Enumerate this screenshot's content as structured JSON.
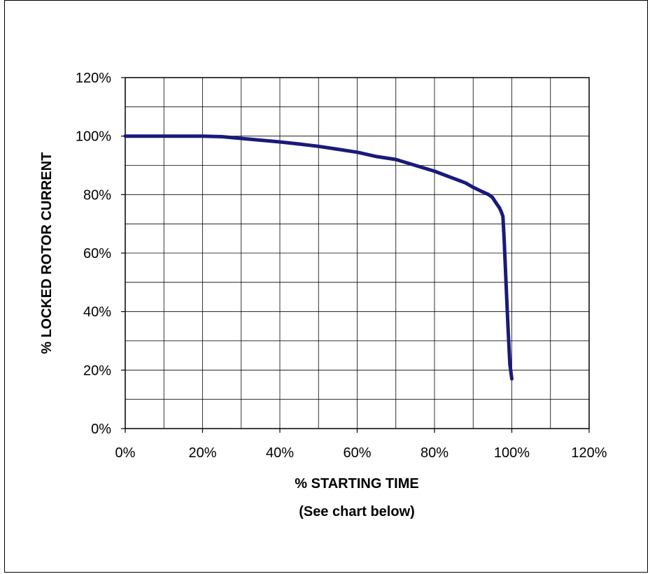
{
  "chart_data": {
    "type": "line",
    "title": "",
    "xlabel": "% STARTING TIME",
    "xlabel_note": "(See chart below)",
    "ylabel": "% LOCKED ROTOR CURRENT",
    "xlim": [
      0,
      120
    ],
    "ylim": [
      0,
      120
    ],
    "x_ticks": [
      0,
      10,
      20,
      30,
      40,
      50,
      60,
      70,
      80,
      90,
      100,
      110,
      120
    ],
    "y_ticks": [
      0,
      10,
      20,
      30,
      40,
      50,
      60,
      70,
      80,
      90,
      100,
      110,
      120
    ],
    "x_tick_labels": [
      "0%",
      "20%",
      "40%",
      "60%",
      "80%",
      "100%",
      "120%"
    ],
    "y_tick_labels": [
      "0%",
      "20%",
      "40%",
      "60%",
      "80%",
      "100%",
      "120%"
    ],
    "grid": true,
    "legend": "none",
    "series": [
      {
        "color": "#1a1a7a",
        "x": [
          0,
          10,
          20,
          25,
          30,
          35,
          40,
          45,
          50,
          55,
          60,
          65,
          70,
          75,
          80,
          85,
          88,
          90,
          92,
          94,
          95,
          96,
          96.8,
          97.3,
          97.7,
          98,
          98.5,
          99,
          99.5,
          100
        ],
        "y": [
          100,
          100,
          100,
          99.8,
          99.2,
          98.6,
          98,
          97.3,
          96.5,
          95.5,
          94.5,
          93,
          92,
          90,
          88,
          85.5,
          84,
          82.5,
          81.2,
          80,
          79,
          77,
          75.5,
          74,
          72.5,
          65,
          50,
          35,
          22,
          17
        ]
      }
    ]
  }
}
